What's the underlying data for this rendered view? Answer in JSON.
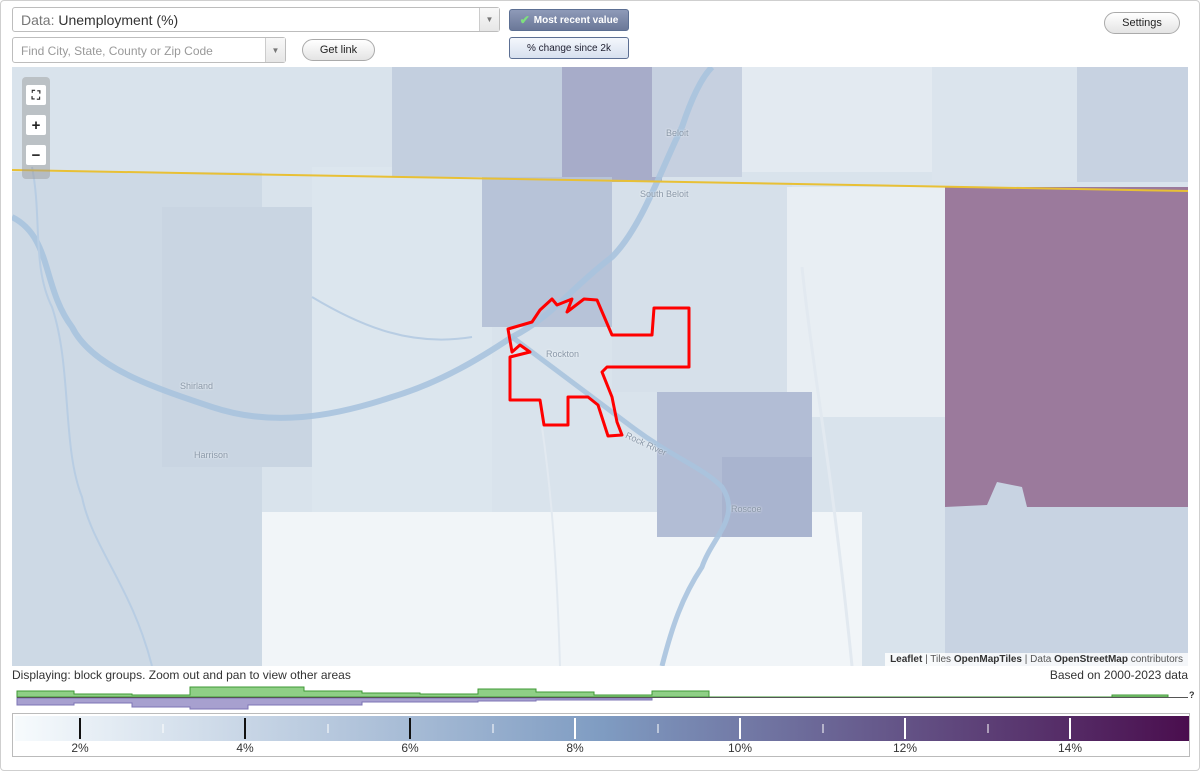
{
  "data_select": {
    "prefix": "Data:",
    "value": "Unemployment (%)"
  },
  "search": {
    "placeholder": "Find City, State, County or Zip Code"
  },
  "buttons": {
    "get_link": "Get link",
    "most_recent": "Most recent value",
    "pct_change": "% change since 2k",
    "settings": "Settings"
  },
  "map": {
    "places": {
      "beloit": "Beloit",
      "south_beloit": "South Beloit",
      "rockton": "Rockton",
      "shirland": "Shirland",
      "harrison": "Harrison",
      "rock_river": "Rock River",
      "roscoe": "Roscoe"
    },
    "attribution": {
      "leaflet": "Leaflet",
      "tiles_prefix": "Tiles",
      "tiles": "OpenMapTiles",
      "data_prefix": "Data",
      "data": "OpenStreetMap",
      "suffix": "contributors"
    },
    "colors": {
      "highlight": "#ff0000",
      "state_line": "#e8c035",
      "high_area": "#9b7a9c"
    }
  },
  "status": {
    "displaying": "Displaying: block groups. Zoom out and pan to view other areas",
    "based_on": "Based on 2000-2023 data",
    "unknown_mark": "?"
  },
  "legend": {
    "ticks": [
      "2%",
      "4%",
      "6%",
      "8%",
      "10%",
      "12%",
      "14%"
    ],
    "color_start": "#f7fbfd",
    "color_mid": "#7f9cc2",
    "color_end": "#4a0e4e"
  }
}
